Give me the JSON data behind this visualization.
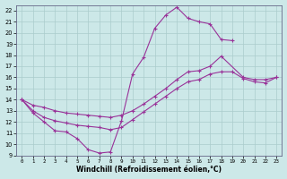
{
  "xlabel": "Windchill (Refroidissement éolien,°C)",
  "bg_color": "#cce8e8",
  "grid_color": "#aacccc",
  "line_color": "#993399",
  "xlim": [
    -0.5,
    23.5
  ],
  "ylim": [
    9,
    22.5
  ],
  "xticks": [
    0,
    1,
    2,
    3,
    4,
    5,
    6,
    7,
    8,
    9,
    10,
    11,
    12,
    13,
    14,
    15,
    16,
    17,
    18,
    19,
    20,
    21,
    22,
    23
  ],
  "yticks": [
    9,
    10,
    11,
    12,
    13,
    14,
    15,
    16,
    17,
    18,
    19,
    20,
    21,
    22
  ],
  "line1_x": [
    0,
    1,
    2,
    3,
    4,
    5,
    6,
    7,
    8,
    9,
    10,
    11,
    12,
    13,
    14,
    15,
    16,
    17,
    18,
    19
  ],
  "line1_y": [
    14.0,
    12.8,
    12.0,
    11.2,
    11.1,
    10.5,
    9.5,
    9.2,
    9.3,
    12.1,
    16.3,
    17.8,
    20.4,
    21.6,
    22.3,
    21.3,
    21.0,
    20.8,
    19.4,
    19.3
  ],
  "line2_x": [
    0,
    1,
    2,
    3,
    4,
    5,
    6,
    7,
    8,
    9,
    10,
    11,
    12,
    13,
    14,
    15,
    16,
    17,
    18,
    20,
    21,
    22,
    23
  ],
  "line2_y": [
    14.0,
    13.5,
    13.3,
    13.0,
    12.8,
    12.7,
    12.6,
    12.5,
    12.4,
    12.6,
    13.0,
    13.6,
    14.3,
    15.0,
    15.8,
    16.5,
    16.6,
    17.0,
    17.9,
    16.0,
    15.8,
    15.8,
    16.0
  ],
  "line3_x": [
    0,
    1,
    2,
    3,
    4,
    5,
    6,
    7,
    8,
    9,
    10,
    11,
    12,
    13,
    14,
    15,
    16,
    17,
    18,
    19,
    20,
    21,
    22,
    23
  ],
  "line3_y": [
    14.0,
    13.0,
    12.4,
    12.1,
    11.9,
    11.7,
    11.6,
    11.5,
    11.3,
    11.5,
    12.2,
    12.9,
    13.6,
    14.3,
    15.0,
    15.6,
    15.8,
    16.3,
    16.5,
    16.5,
    15.9,
    15.6,
    15.5,
    16.0
  ]
}
